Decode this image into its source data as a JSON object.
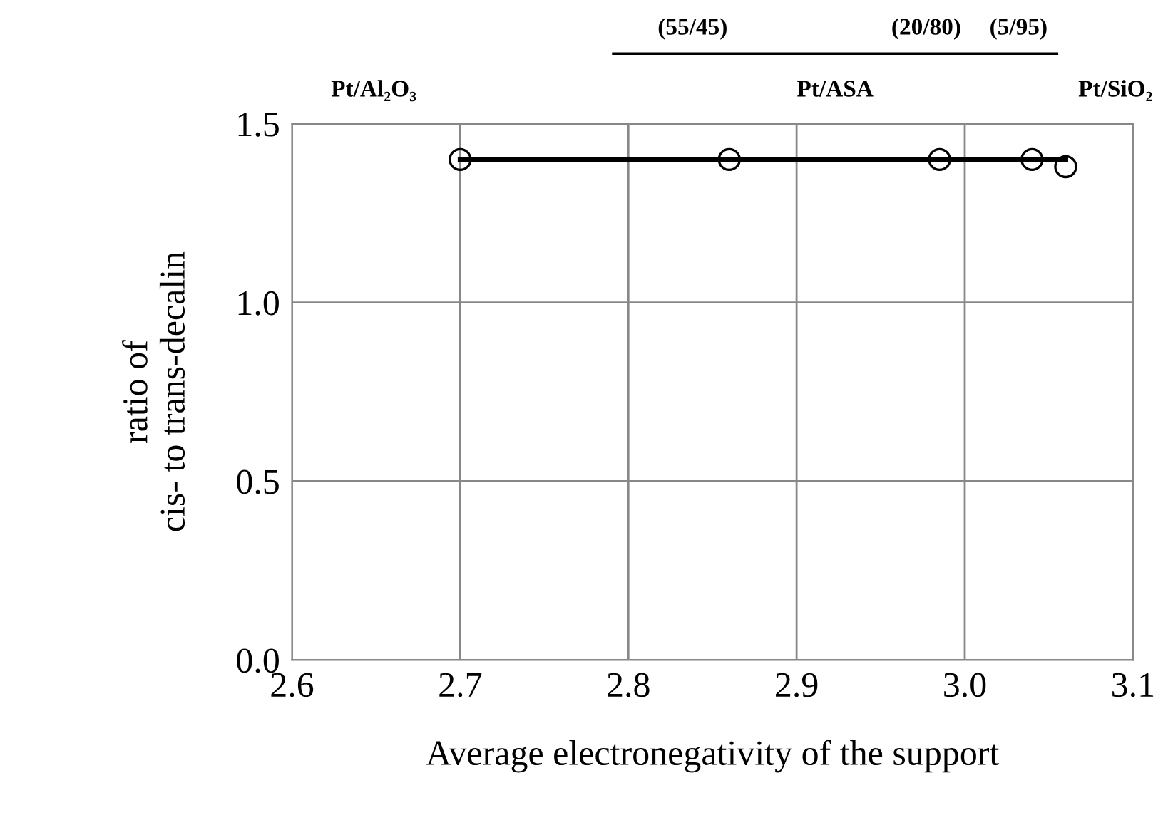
{
  "chart_data": {
    "type": "scatter",
    "xlabel": "Average electronegativity of the support",
    "ylabel": "ratio of\ncis- to trans-decalin",
    "series": [
      {
        "type": "line",
        "color": "#000000",
        "x": [
          2.7,
          3.06
        ],
        "values": [
          1.4,
          1.4
        ],
        "marker": "none",
        "line_style": "solid"
      },
      {
        "color": "#000000",
        "x": [
          2.7,
          2.86,
          2.985,
          3.04,
          3.06
        ],
        "values": [
          1.4,
          1.4,
          1.4,
          1.4,
          1.38
        ],
        "marker": "circle"
      }
    ],
    "xlim": [
      2.6,
      3.1
    ],
    "xticks": [
      {
        "value": 2.6,
        "label": "2.6"
      },
      {
        "value": 2.7,
        "label": "2.7"
      },
      {
        "value": 2.8,
        "label": "2.8"
      },
      {
        "value": 2.9,
        "label": "2.9"
      },
      {
        "value": 3.0,
        "label": "3.0"
      },
      {
        "value": 3.1,
        "label": "3.1"
      }
    ],
    "ylim": [
      0,
      1.5
    ],
    "yticks": [
      {
        "value": 0,
        "label": "0.0"
      },
      {
        "value": 0.5,
        "label": "0.5"
      },
      {
        "value": 1.0,
        "label": "1.0"
      },
      {
        "value": 1.5,
        "label": "1.5"
      }
    ],
    "grid": true,
    "legend": false,
    "annotations": [
      "(55/45)",
      "(20/80)",
      "(5/95)",
      "Pt/Al₂O₃",
      "Pt/ASA",
      "Pt/SiO₂"
    ]
  }
}
